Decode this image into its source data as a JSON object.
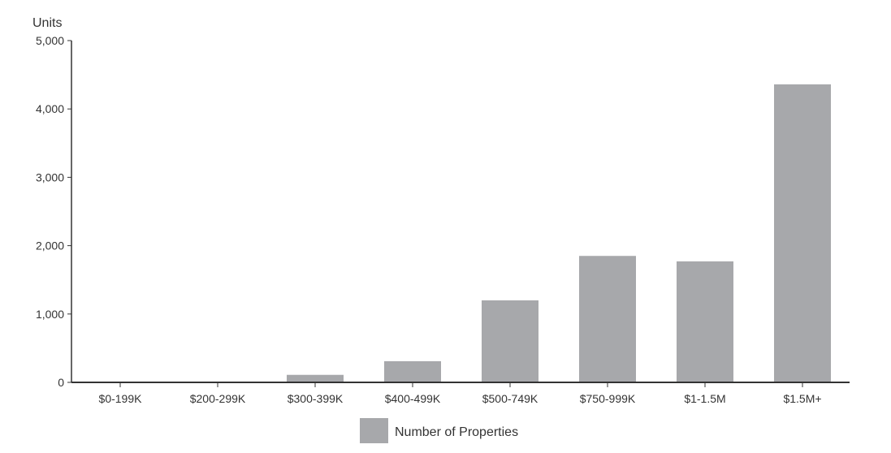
{
  "chart_data": {
    "type": "bar",
    "ylabel": "Units",
    "xlabel": "",
    "categories": [
      "$0-199K",
      "$200-299K",
      "$300-399K",
      "$400-499K",
      "$500-749K",
      "$750-999K",
      "$1-1.5M",
      "$1.5M+"
    ],
    "series": [
      {
        "name": "Number of Properties",
        "color": "#a7a8ab",
        "values": [
          0,
          0,
          110,
          310,
          1200,
          1850,
          1770,
          4360
        ]
      }
    ],
    "ylim": [
      0,
      5000
    ],
    "yticks": [
      0,
      1000,
      2000,
      3000,
      4000,
      5000
    ],
    "ytick_labels": [
      "0",
      "1,000",
      "2,000",
      "3,000",
      "4,000",
      "5,000"
    ],
    "grid": false,
    "legend_position": "bottom"
  }
}
